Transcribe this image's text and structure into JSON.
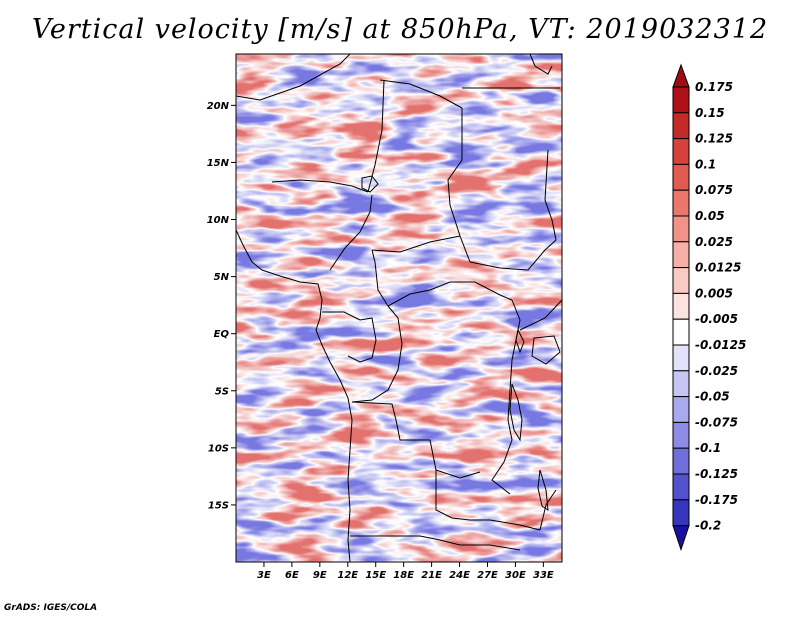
{
  "title": "Vertical velocity [m/s] at 850hPa, VT: 2019032312",
  "footer": "GrADS: IGES/COLA",
  "map": {
    "variable": "Vertical velocity",
    "units": "m/s",
    "level": "850hPa",
    "valid_time": "2019032312",
    "lon_range": [
      0,
      35
    ],
    "lat_range": [
      -20,
      24.5
    ],
    "lat_ticks": [
      {
        "value": 20,
        "label": "20N"
      },
      {
        "value": 15,
        "label": "15N"
      },
      {
        "value": 10,
        "label": "10N"
      },
      {
        "value": 5,
        "label": "5N"
      },
      {
        "value": 0,
        "label": "EQ"
      },
      {
        "value": -5,
        "label": "5S"
      },
      {
        "value": -10,
        "label": "10S"
      },
      {
        "value": -15,
        "label": "15S"
      }
    ],
    "lon_ticks": [
      {
        "value": 3,
        "label": "3E"
      },
      {
        "value": 6,
        "label": "6E"
      },
      {
        "value": 9,
        "label": "9E"
      },
      {
        "value": 12,
        "label": "12E"
      },
      {
        "value": 15,
        "label": "15E"
      },
      {
        "value": 18,
        "label": "18E"
      },
      {
        "value": 21,
        "label": "21E"
      },
      {
        "value": 24,
        "label": "24E"
      },
      {
        "value": 27,
        "label": "27E"
      },
      {
        "value": 30,
        "label": "30E"
      },
      {
        "value": 33,
        "label": "33E"
      }
    ]
  },
  "colorbar": {
    "levels": [
      {
        "label": "0.175",
        "color": "#b01018"
      },
      {
        "label": "0.15",
        "color": "#c42a28"
      },
      {
        "label": "0.125",
        "color": "#d6413c"
      },
      {
        "label": "0.1",
        "color": "#e25a52"
      },
      {
        "label": "0.075",
        "color": "#ea766c"
      },
      {
        "label": "0.05",
        "color": "#f19389"
      },
      {
        "label": "0.025",
        "color": "#f6b0a8"
      },
      {
        "label": "0.0125",
        "color": "#facac4"
      },
      {
        "label": "0.005",
        "color": "#fde3df"
      },
      {
        "label": "-0.005",
        "color": "#ffffff"
      },
      {
        "label": "-0.0125",
        "color": "#e2e2fa"
      },
      {
        "label": "-0.025",
        "color": "#c6c6f4"
      },
      {
        "label": "-0.05",
        "color": "#a9a9ee"
      },
      {
        "label": "-0.075",
        "color": "#8c8ce6"
      },
      {
        "label": "-0.1",
        "color": "#6f6fdc"
      },
      {
        "label": "-0.125",
        "color": "#5252ce"
      },
      {
        "label": "-0.175",
        "color": "#3535bd"
      },
      {
        "label": "-0.2",
        "color": "#1c1ca8"
      }
    ],
    "top_triangle_color": "#9c0d16",
    "bottom_triangle_color": "#1a0fa0"
  }
}
